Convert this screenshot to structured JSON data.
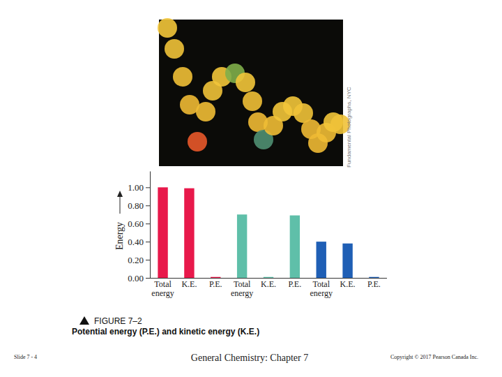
{
  "chart_data": {
    "type": "bar",
    "y_label": "Energy",
    "categories": [
      "Total energy",
      "K.E.",
      "P.E.",
      "Total energy",
      "K.E.",
      "P.E.",
      "Total energy",
      "K.E.",
      "P.E."
    ],
    "values": [
      1.0,
      0.99,
      0.01,
      0.7,
      0.01,
      0.69,
      0.4,
      0.38,
      0.01
    ],
    "colors": [
      "#e8194b",
      "#e8194b",
      "#e8194b",
      "#5fbfa9",
      "#5fbfa9",
      "#5fbfa9",
      "#1f5fb5",
      "#1f5fb5",
      "#1f5fb5"
    ],
    "ylim": [
      0,
      1.18
    ],
    "yticks": [
      {
        "value": 0,
        "label": "0.00"
      },
      {
        "value": 0.2,
        "label": "0.20"
      },
      {
        "value": 0.4,
        "label": "0.40"
      },
      {
        "value": 0.6,
        "label": "0.60"
      },
      {
        "value": 0.8,
        "label": "0.80"
      },
      {
        "value": 1.0,
        "label": "1.00"
      }
    ],
    "grid": false
  },
  "photo": {
    "credit": "Fundamental Photographs, NYC"
  },
  "caption": {
    "figure": "FIGURE 7–2",
    "text": "Potential energy (P.E.) and kinetic energy (K.E.)"
  },
  "footer": {
    "slide": "Slide 7 - 4",
    "course": "General Chemistry: Chapter 7",
    "copyright": "Copyright © 2017 Pearson Canada Inc."
  }
}
